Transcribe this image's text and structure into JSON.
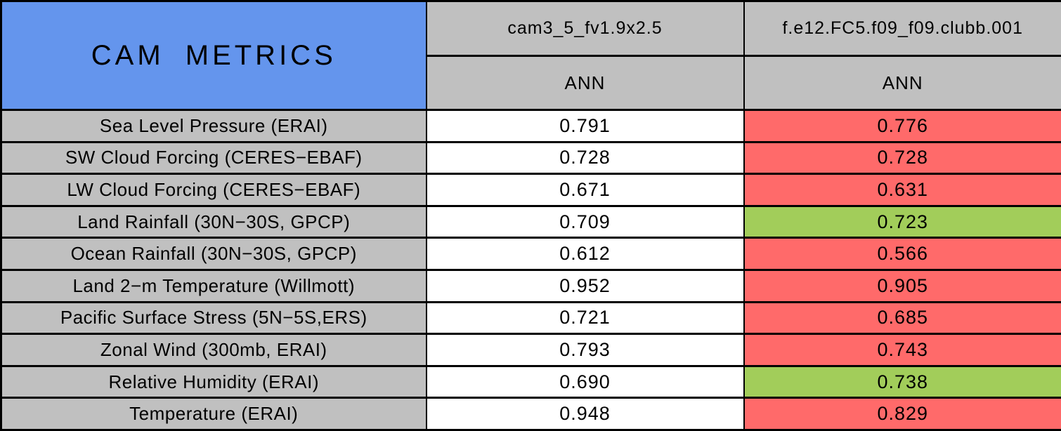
{
  "chart_data": {
    "type": "table",
    "title": "CAM METRICS",
    "column_groups": [
      {
        "model": "cam3_5_fv1.9x2.5",
        "season": "ANN"
      },
      {
        "model": "f.e12.FC5.f09_f09.clubb.001",
        "season": "ANN"
      }
    ],
    "status_colors": {
      "neutral": "#FFFFFF",
      "worse": "#FF6A6A",
      "better": "#A2CD5A"
    },
    "layout_colors": {
      "title_bg": "#6495ED",
      "header_bg": "#C0C0C0",
      "border": "#000000",
      "text": "#000000"
    },
    "rows": [
      {
        "metric": "Sea Level Pressure (ERAI)",
        "cells": [
          {
            "value": "0.791",
            "status": "neutral"
          },
          {
            "value": "0.776",
            "status": "worse"
          }
        ]
      },
      {
        "metric": "SW Cloud Forcing (CERES−EBAF)",
        "cells": [
          {
            "value": "0.728",
            "status": "neutral"
          },
          {
            "value": "0.728",
            "status": "worse"
          }
        ]
      },
      {
        "metric": "LW Cloud Forcing (CERES−EBAF)",
        "cells": [
          {
            "value": "0.671",
            "status": "neutral"
          },
          {
            "value": "0.631",
            "status": "worse"
          }
        ]
      },
      {
        "metric": "Land Rainfall (30N−30S, GPCP)",
        "cells": [
          {
            "value": "0.709",
            "status": "neutral"
          },
          {
            "value": "0.723",
            "status": "better"
          }
        ]
      },
      {
        "metric": "Ocean Rainfall (30N−30S, GPCP)",
        "cells": [
          {
            "value": "0.612",
            "status": "neutral"
          },
          {
            "value": "0.566",
            "status": "worse"
          }
        ]
      },
      {
        "metric": "Land 2−m Temperature (Willmott)",
        "cells": [
          {
            "value": "0.952",
            "status": "neutral"
          },
          {
            "value": "0.905",
            "status": "worse"
          }
        ]
      },
      {
        "metric": "Pacific Surface Stress (5N−5S,ERS)",
        "cells": [
          {
            "value": "0.721",
            "status": "neutral"
          },
          {
            "value": "0.685",
            "status": "worse"
          }
        ]
      },
      {
        "metric": "Zonal Wind (300mb, ERAI)",
        "cells": [
          {
            "value": "0.793",
            "status": "neutral"
          },
          {
            "value": "0.743",
            "status": "worse"
          }
        ]
      },
      {
        "metric": "Relative Humidity (ERAI)",
        "cells": [
          {
            "value": "0.690",
            "status": "neutral"
          },
          {
            "value": "0.738",
            "status": "better"
          }
        ]
      },
      {
        "metric": "Temperature (ERAI)",
        "cells": [
          {
            "value": "0.948",
            "status": "neutral"
          },
          {
            "value": "0.829",
            "status": "worse"
          }
        ]
      }
    ]
  }
}
